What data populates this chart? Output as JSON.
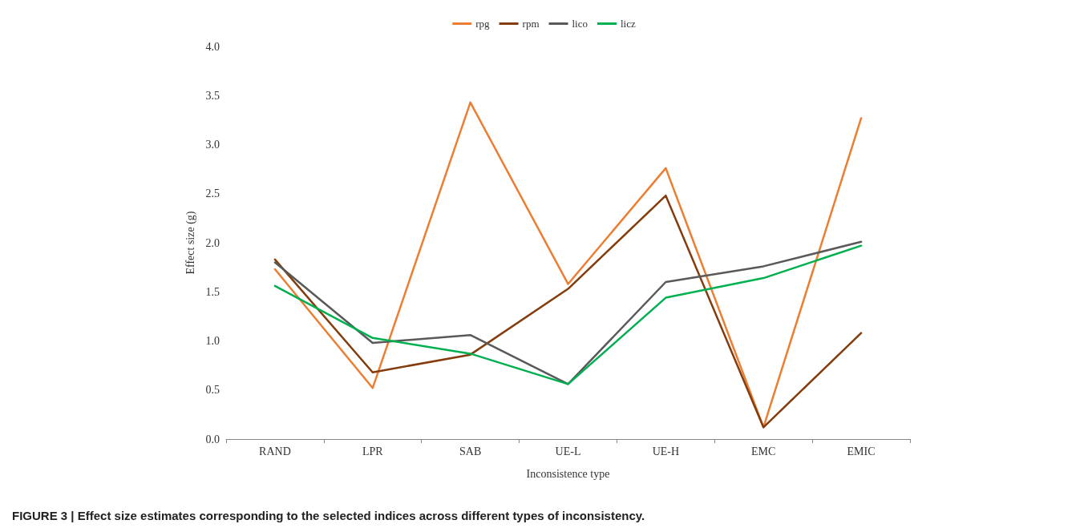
{
  "chart_data": {
    "type": "line",
    "title": "FIGURE 3 | Effect size estimates corresponding to the selected indices across different types of inconsistency.",
    "xlabel": "Inconsistence type",
    "ylabel": "Effect size (g)",
    "categories": [
      "RAND",
      "LPR",
      "SAB",
      "UE-L",
      "UE-H",
      "EMC",
      "EMIC"
    ],
    "series": [
      {
        "name": "rpg",
        "color": "#ed7d31",
        "values": [
          1.73,
          0.52,
          3.43,
          1.58,
          2.76,
          0.12,
          3.27
        ]
      },
      {
        "name": "rpm",
        "color": "#843c0c",
        "values": [
          1.83,
          0.68,
          0.86,
          1.53,
          2.48,
          0.12,
          1.08
        ]
      },
      {
        "name": "lico",
        "color": "#595959",
        "values": [
          1.8,
          0.98,
          1.06,
          0.56,
          1.6,
          1.76,
          2.01
        ]
      },
      {
        "name": "licz",
        "color": "#00b050",
        "values": [
          1.56,
          1.03,
          0.87,
          0.56,
          1.44,
          1.64,
          1.97
        ]
      }
    ],
    "ylim": [
      0,
      4
    ],
    "yticks": [
      {
        "value": 0,
        "label": "0.0"
      },
      0.5,
      {
        "value": 1,
        "label": "1.0"
      },
      1.5,
      {
        "value": 2,
        "label": "2.0"
      },
      2.5,
      {
        "value": 3,
        "label": "3.0"
      },
      3.5,
      {
        "value": 4,
        "label": "4.0"
      }
    ],
    "grid": false,
    "legend": "top",
    "marker": "none",
    "line_style": "solid"
  }
}
